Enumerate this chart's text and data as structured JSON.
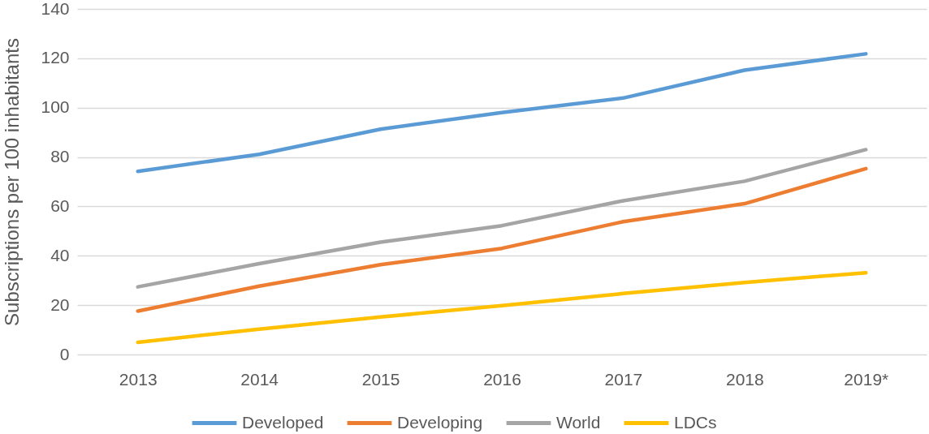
{
  "chart_data": {
    "type": "line",
    "ylabel": "Subscriptions per 100 inhabitants",
    "categories": [
      "2013",
      "2014",
      "2015",
      "2016",
      "2017",
      "2018",
      "2019*"
    ],
    "series": [
      {
        "name": "Developed",
        "color": "#5b9bd5",
        "values": [
          74.2,
          81.1,
          91.3,
          98.0,
          103.9,
          115.2,
          121.8
        ]
      },
      {
        "name": "Developing",
        "color": "#ed7d31",
        "values": [
          17.6,
          27.7,
          36.4,
          43.0,
          53.8,
          61.1,
          75.3
        ]
      },
      {
        "name": "World",
        "color": "#a5a5a5",
        "values": [
          27.4,
          36.8,
          45.5,
          52.2,
          62.3,
          70.2,
          83.0
        ]
      },
      {
        "name": "LDCs",
        "color": "#ffc000",
        "values": [
          4.9,
          10.3,
          15.2,
          19.8,
          24.7,
          29.2,
          33.1
        ]
      }
    ],
    "ylim": [
      0,
      140
    ],
    "yticks": [
      0,
      20,
      40,
      60,
      80,
      100,
      120,
      140
    ],
    "grid": "y",
    "legend": "bottom",
    "line_style": "solid"
  }
}
